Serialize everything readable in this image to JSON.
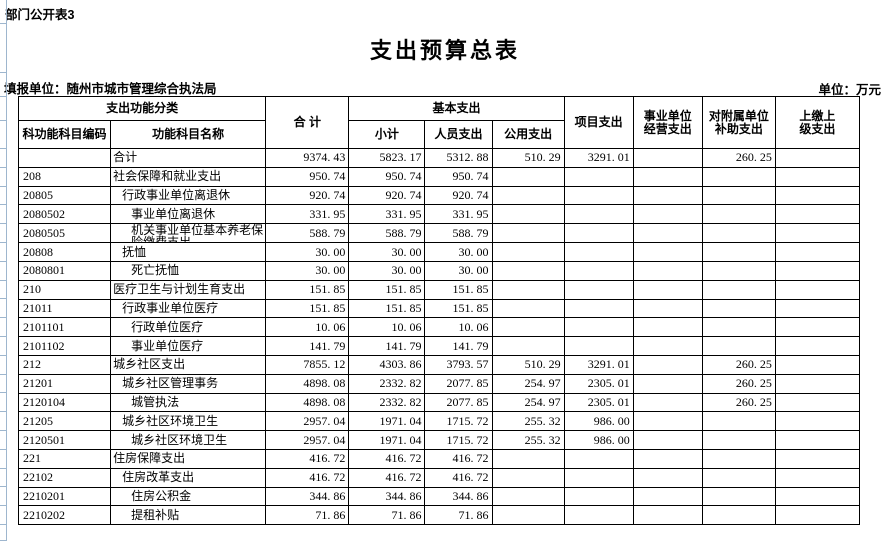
{
  "page": {
    "sheet_label": "部门公开表3",
    "title": "支出预算总表",
    "report_unit": "填报单位：随州市城市管理综合执法局",
    "unit_note": "单位：万元"
  },
  "colors": {
    "table_border": "#000000",
    "excel_gridline": "#9eb6ce",
    "text": "#000000",
    "background": "#ffffff"
  },
  "table": {
    "headers": {
      "func_class": "支出功能分类",
      "code": "科功能科目编码",
      "name": "功能科目名称",
      "total": "合  计",
      "basic": "基本支出",
      "subtotal": "小计",
      "personnel": "人员支出",
      "public_exp": "公用支出",
      "project": "项目支出",
      "business_line1": "事业单位",
      "business_line2": "经营支出",
      "subsidy_line1": "对附属单位",
      "subsidy_line2": "补助支出",
      "upper_line1": "上缴上",
      "upper_line2": "级支出"
    },
    "rows": [
      {
        "code": "",
        "name": "合计",
        "indent": 0,
        "total": "9374. 43",
        "subtotal": "5823. 17",
        "personnel": "5312. 88",
        "public_exp": "510. 29",
        "project": "3291. 01",
        "business": "",
        "subsidy": "260. 25",
        "upper": ""
      },
      {
        "code": "208",
        "name": "社会保障和就业支出",
        "indent": 0,
        "total": "950. 74",
        "subtotal": "950. 74",
        "personnel": "950. 74",
        "public_exp": "",
        "project": "",
        "business": "",
        "subsidy": "",
        "upper": ""
      },
      {
        "code": "20805",
        "name": "行政事业单位离退休",
        "indent": 1,
        "total": "920. 74",
        "subtotal": "920. 74",
        "personnel": "920. 74",
        "public_exp": "",
        "project": "",
        "business": "",
        "subsidy": "",
        "upper": ""
      },
      {
        "code": "2080502",
        "name": "事业单位离退休",
        "indent": 2,
        "total": "331. 95",
        "subtotal": "331. 95",
        "personnel": "331. 95",
        "public_exp": "",
        "project": "",
        "business": "",
        "subsidy": "",
        "upper": ""
      },
      {
        "code": "2080505",
        "name": "机关事业单位基本养老保险缴费支出",
        "indent": 2,
        "wrap": true,
        "total": "588. 79",
        "subtotal": "588. 79",
        "personnel": "588. 79",
        "public_exp": "",
        "project": "",
        "business": "",
        "subsidy": "",
        "upper": ""
      },
      {
        "code": "20808",
        "name": "抚恤",
        "indent": 1,
        "total": "30. 00",
        "subtotal": "30. 00",
        "personnel": "30. 00",
        "public_exp": "",
        "project": "",
        "business": "",
        "subsidy": "",
        "upper": ""
      },
      {
        "code": "2080801",
        "name": "死亡抚恤",
        "indent": 2,
        "total": "30. 00",
        "subtotal": "30. 00",
        "personnel": "30. 00",
        "public_exp": "",
        "project": "",
        "business": "",
        "subsidy": "",
        "upper": ""
      },
      {
        "code": "210",
        "name": "医疗卫生与计划生育支出",
        "indent": 0,
        "total": "151. 85",
        "subtotal": "151. 85",
        "personnel": "151. 85",
        "public_exp": "",
        "project": "",
        "business": "",
        "subsidy": "",
        "upper": ""
      },
      {
        "code": "21011",
        "name": "行政事业单位医疗",
        "indent": 1,
        "total": "151. 85",
        "subtotal": "151. 85",
        "personnel": "151. 85",
        "public_exp": "",
        "project": "",
        "business": "",
        "subsidy": "",
        "upper": ""
      },
      {
        "code": "2101101",
        "name": "行政单位医疗",
        "indent": 2,
        "total": "10. 06",
        "subtotal": "10. 06",
        "personnel": "10. 06",
        "public_exp": "",
        "project": "",
        "business": "",
        "subsidy": "",
        "upper": ""
      },
      {
        "code": "2101102",
        "name": "事业单位医疗",
        "indent": 2,
        "total": "141. 79",
        "subtotal": "141. 79",
        "personnel": "141. 79",
        "public_exp": "",
        "project": "",
        "business": "",
        "subsidy": "",
        "upper": ""
      },
      {
        "code": "212",
        "name": "城乡社区支出",
        "indent": 0,
        "total": "7855. 12",
        "subtotal": "4303. 86",
        "personnel": "3793. 57",
        "public_exp": "510. 29",
        "project": "3291. 01",
        "business": "",
        "subsidy": "260. 25",
        "upper": ""
      },
      {
        "code": "21201",
        "name": "城乡社区管理事务",
        "indent": 1,
        "total": "4898. 08",
        "subtotal": "2332. 82",
        "personnel": "2077. 85",
        "public_exp": "254. 97",
        "project": "2305. 01",
        "business": "",
        "subsidy": "260. 25",
        "upper": ""
      },
      {
        "code": "2120104",
        "name": "城管执法",
        "indent": 2,
        "total": "4898. 08",
        "subtotal": "2332. 82",
        "personnel": "2077. 85",
        "public_exp": "254. 97",
        "project": "2305. 01",
        "business": "",
        "subsidy": "260. 25",
        "upper": ""
      },
      {
        "code": "21205",
        "name": "城乡社区环境卫生",
        "indent": 1,
        "total": "2957. 04",
        "subtotal": "1971. 04",
        "personnel": "1715. 72",
        "public_exp": "255. 32",
        "project": "986. 00",
        "business": "",
        "subsidy": "",
        "upper": ""
      },
      {
        "code": "2120501",
        "name": "城乡社区环境卫生",
        "indent": 2,
        "total": "2957. 04",
        "subtotal": "1971. 04",
        "personnel": "1715. 72",
        "public_exp": "255. 32",
        "project": "986. 00",
        "business": "",
        "subsidy": "",
        "upper": ""
      },
      {
        "code": "221",
        "name": "住房保障支出",
        "indent": 0,
        "total": "416. 72",
        "subtotal": "416. 72",
        "personnel": "416. 72",
        "public_exp": "",
        "project": "",
        "business": "",
        "subsidy": "",
        "upper": ""
      },
      {
        "code": "22102",
        "name": "住房改革支出",
        "indent": 1,
        "total": "416. 72",
        "subtotal": "416. 72",
        "personnel": "416. 72",
        "public_exp": "",
        "project": "",
        "business": "",
        "subsidy": "",
        "upper": ""
      },
      {
        "code": "2210201",
        "name": "住房公积金",
        "indent": 2,
        "total": "344. 86",
        "subtotal": "344. 86",
        "personnel": "344. 86",
        "public_exp": "",
        "project": "",
        "business": "",
        "subsidy": "",
        "upper": ""
      },
      {
        "code": "2210202",
        "name": "提租补贴",
        "indent": 2,
        "total": "71. 86",
        "subtotal": "71. 86",
        "personnel": "71. 86",
        "public_exp": "",
        "project": "",
        "business": "",
        "subsidy": "",
        "upper": ""
      }
    ]
  }
}
